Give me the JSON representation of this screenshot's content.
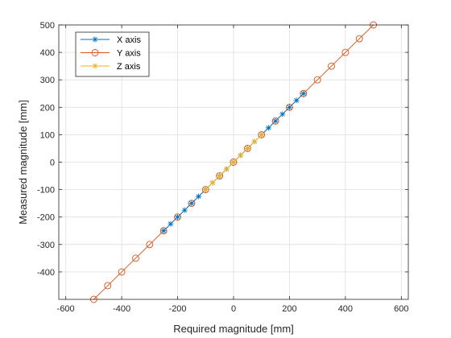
{
  "chart_data": {
    "type": "line",
    "title": "",
    "xlabel": "Required magnitude [mm]",
    "ylabel": "Measured magnitude [mm]",
    "xlim": [
      -625,
      625
    ],
    "ylim": [
      -500,
      500
    ],
    "xticks": [
      "-600",
      "-400",
      "-200",
      "0",
      "200",
      "400",
      "600"
    ],
    "yticks": [
      "-400",
      "-300",
      "-200",
      "-100",
      "0",
      "100",
      "200",
      "300",
      "400",
      "500"
    ],
    "grid": true,
    "legend_position": "top-left",
    "series": [
      {
        "name": "X axis",
        "color": "#0072BD",
        "marker": "asterisk",
        "x": [
          -250,
          -225,
          -200,
          -175,
          -150,
          -125,
          -100,
          -75,
          -50,
          -25,
          0,
          25,
          50,
          75,
          100,
          125,
          150,
          175,
          200,
          225,
          250
        ],
        "y": [
          -250,
          -225,
          -200,
          -175,
          -150,
          -125,
          -100,
          -75,
          -50,
          -25,
          0,
          25,
          50,
          75,
          100,
          125,
          150,
          175,
          200,
          225,
          250
        ]
      },
      {
        "name": "Y axis",
        "color": "#D95319",
        "marker": "circle",
        "x": [
          -500,
          -450,
          -400,
          -350,
          -300,
          -250,
          -200,
          -150,
          -100,
          -50,
          0,
          50,
          100,
          150,
          200,
          250,
          300,
          350,
          400,
          450,
          500
        ],
        "y": [
          -500,
          -450,
          -400,
          -350,
          -300,
          -250,
          -200,
          -150,
          -100,
          -50,
          0,
          50,
          100,
          150,
          200,
          250,
          300,
          350,
          400,
          450,
          500
        ]
      },
      {
        "name": "Z axis",
        "color": "#EDB120",
        "marker": "asterisk",
        "x": [
          -100,
          -75,
          -50,
          -25,
          0,
          25,
          50,
          75,
          100
        ],
        "y": [
          -100,
          -75,
          -50,
          -25,
          0,
          25,
          50,
          75,
          100
        ]
      }
    ]
  }
}
